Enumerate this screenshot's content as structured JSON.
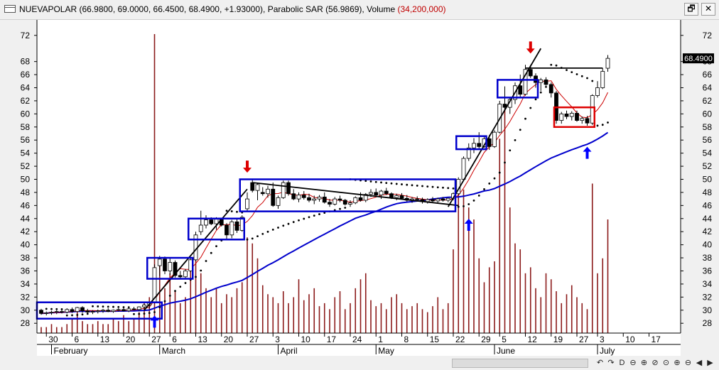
{
  "window": {
    "title_main": "NUEVAPOLAR (66.9800, 69.0000, 66.4500, 68.4900, +1.93000), Parabolic SAR (56.9869), Volume ",
    "title_volume": "(34,200,000)",
    "restore_label": "🗗",
    "close_label": "✕"
  },
  "toolbar": {
    "buttons": [
      "↶",
      "↷",
      "D",
      "⊖",
      "⊕",
      "⊘",
      "⊙",
      "⊕",
      "⊖",
      "◀",
      "▶"
    ]
  },
  "colors": {
    "bg": "#ffffff",
    "volume": "#8b1a1a",
    "ma_long": "#0000cc",
    "ma_short": "#cc0000",
    "sar": "#000000",
    "box": "#0000cc",
    "box_red": "#dd0000",
    "arrow_up": "#0000ff",
    "arrow_down": "#dd0000",
    "trendline": "#000000",
    "price_tag_bg": "#000000",
    "price_tag_fg": "#ffffff"
  },
  "chart_data": {
    "type": "candlestick",
    "y_ticks": [
      28,
      30,
      32,
      34,
      36,
      38,
      40,
      42,
      44,
      46,
      48,
      50,
      52,
      54,
      56,
      58,
      60,
      62,
      64,
      66,
      68,
      72
    ],
    "y_range": [
      26.5,
      73.5
    ],
    "last_price_tag": "68.4900",
    "x_day_ticks": [
      {
        "i": 1,
        "t": "30"
      },
      {
        "i": 6,
        "t": "6"
      },
      {
        "i": 11,
        "t": "13"
      },
      {
        "i": 16,
        "t": "20"
      },
      {
        "i": 21,
        "t": "27"
      },
      {
        "i": 25,
        "t": "6"
      },
      {
        "i": 30,
        "t": "13"
      },
      {
        "i": 35,
        "t": "20"
      },
      {
        "i": 40,
        "t": "27"
      },
      {
        "i": 45,
        "t": "3"
      },
      {
        "i": 50,
        "t": "10"
      },
      {
        "i": 55,
        "t": "17"
      },
      {
        "i": 60,
        "t": "24"
      },
      {
        "i": 65,
        "t": "1"
      },
      {
        "i": 70,
        "t": "8"
      },
      {
        "i": 75,
        "t": "15"
      },
      {
        "i": 80,
        "t": "22"
      },
      {
        "i": 85,
        "t": "29"
      },
      {
        "i": 89,
        "t": "5"
      },
      {
        "i": 94,
        "t": "12"
      },
      {
        "i": 99,
        "t": "19"
      },
      {
        "i": 104,
        "t": "27"
      },
      {
        "i": 108,
        "t": "3"
      },
      {
        "i": 113,
        "t": "10"
      },
      {
        "i": 118,
        "t": "17"
      }
    ],
    "x_month_ticks": [
      {
        "i": 2,
        "t": "February"
      },
      {
        "i": 23,
        "t": "March"
      },
      {
        "i": 46,
        "t": "April"
      },
      {
        "i": 65,
        "t": "May"
      },
      {
        "i": 88,
        "t": "June"
      },
      {
        "i": 108,
        "t": "July"
      }
    ],
    "candles": [
      [
        0,
        30.0,
        30.2,
        29.3,
        29.5
      ],
      [
        1,
        29.5,
        29.8,
        29.2,
        29.6
      ],
      [
        2,
        29.6,
        29.9,
        29.3,
        29.7
      ],
      [
        3,
        29.7,
        30.0,
        29.4,
        29.8
      ],
      [
        4,
        29.8,
        30.1,
        29.5,
        29.7
      ],
      [
        5,
        29.7,
        30.3,
        29.5,
        30.1
      ],
      [
        6,
        30.1,
        30.4,
        29.6,
        29.8
      ],
      [
        7,
        29.8,
        30.5,
        29.7,
        30.4
      ],
      [
        8,
        30.4,
        30.6,
        29.6,
        29.9
      ],
      [
        9,
        29.9,
        30.2,
        29.5,
        29.7
      ],
      [
        10,
        29.7,
        30.0,
        29.4,
        29.8
      ],
      [
        11,
        29.8,
        30.1,
        29.5,
        29.9
      ],
      [
        12,
        29.9,
        30.2,
        29.6,
        30.0
      ],
      [
        13,
        30.0,
        30.3,
        29.7,
        29.8
      ],
      [
        14,
        29.8,
        30.1,
        29.6,
        30.0
      ],
      [
        15,
        30.0,
        30.3,
        29.8,
        30.1
      ],
      [
        16,
        30.1,
        30.4,
        29.8,
        29.9
      ],
      [
        17,
        29.9,
        30.3,
        29.7,
        30.2
      ],
      [
        18,
        30.2,
        30.5,
        30.0,
        30.1
      ],
      [
        19,
        30.1,
        30.6,
        29.9,
        30.5
      ],
      [
        20,
        30.5,
        31.0,
        30.2,
        30.8
      ],
      [
        21,
        30.8,
        31.3,
        30.3,
        31.2
      ],
      [
        22,
        31.2,
        37.0,
        31.0,
        36.5
      ],
      [
        23,
        36.8,
        38.3,
        35.2,
        37.8
      ],
      [
        24,
        37.8,
        38.2,
        35.5,
        36.0
      ],
      [
        25,
        36.0,
        37.9,
        35.4,
        37.3
      ],
      [
        26,
        37.3,
        37.6,
        35.0,
        35.3
      ],
      [
        27,
        35.3,
        36.0,
        34.7,
        35.1
      ],
      [
        28,
        35.1,
        36.3,
        34.9,
        36.0
      ],
      [
        29,
        36.0,
        37.9,
        35.8,
        37.7
      ],
      [
        30,
        37.7,
        42.0,
        37.5,
        41.5
      ],
      [
        31,
        42.0,
        45.2,
        41.5,
        43.0
      ],
      [
        32,
        43.0,
        44.5,
        42.5,
        43.8
      ],
      [
        33,
        43.8,
        44.2,
        43.0,
        43.2
      ],
      [
        34,
        43.2,
        44.2,
        42.3,
        43.9
      ],
      [
        35,
        43.9,
        44.0,
        42.8,
        43.0
      ],
      [
        36,
        43.0,
        43.3,
        40.8,
        41.5
      ],
      [
        37,
        41.5,
        43.8,
        41.0,
        43.5
      ],
      [
        38,
        43.5,
        44.0,
        41.8,
        42.2
      ],
      [
        39,
        42.2,
        44.5,
        42.0,
        44.2
      ],
      [
        40,
        45.5,
        48.0,
        45.2,
        47.0
      ],
      [
        41,
        49.5,
        50.0,
        48.0,
        48.3
      ],
      [
        42,
        48.3,
        49.5,
        46.8,
        49.2
      ],
      [
        43,
        48.0,
        48.8,
        47.5,
        47.8
      ],
      [
        44,
        47.8,
        49.0,
        47.2,
        48.5
      ],
      [
        45,
        48.5,
        49.5,
        45.8,
        46.0
      ],
      [
        46,
        46.0,
        47.5,
        45.5,
        47.2
      ],
      [
        47,
        47.2,
        49.8,
        47.0,
        49.5
      ],
      [
        48,
        49.5,
        49.8,
        47.5,
        47.8
      ],
      [
        49,
        47.8,
        48.5,
        46.8,
        47.0
      ],
      [
        50,
        47.0,
        48.0,
        46.5,
        47.6
      ],
      [
        51,
        47.6,
        48.2,
        46.9,
        47.2
      ],
      [
        52,
        47.2,
        47.8,
        46.5,
        46.8
      ],
      [
        53,
        46.8,
        47.5,
        46.2,
        47.0
      ],
      [
        54,
        47.0,
        47.6,
        46.6,
        47.3
      ],
      [
        55,
        47.3,
        48.0,
        46.3,
        46.5
      ],
      [
        56,
        46.5,
        47.0,
        45.8,
        46.2
      ],
      [
        57,
        46.2,
        47.3,
        46.0,
        47.0
      ],
      [
        58,
        47.0,
        47.5,
        46.5,
        46.8
      ],
      [
        59,
        46.8,
        47.0,
        46.0,
        46.2
      ],
      [
        60,
        46.2,
        46.8,
        45.8,
        46.4
      ],
      [
        61,
        46.4,
        47.4,
        46.2,
        47.2
      ],
      [
        62,
        47.2,
        48.0,
        46.6,
        46.8
      ],
      [
        63,
        46.8,
        47.9,
        46.5,
        47.7
      ],
      [
        64,
        47.7,
        48.5,
        47.3,
        48.0
      ],
      [
        65,
        48.0,
        48.6,
        47.5,
        47.6
      ],
      [
        66,
        47.6,
        48.4,
        47.0,
        48.2
      ],
      [
        67,
        48.2,
        48.7,
        47.6,
        47.8
      ],
      [
        68,
        47.8,
        48.0,
        47.0,
        47.2
      ],
      [
        69,
        47.2,
        47.8,
        46.8,
        47.5
      ],
      [
        70,
        47.5,
        47.9,
        46.9,
        47.1
      ],
      [
        71,
        47.1,
        47.6,
        46.6,
        46.8
      ],
      [
        72,
        46.8,
        47.3,
        46.4,
        47.0
      ],
      [
        73,
        47.0,
        47.4,
        46.6,
        46.9
      ],
      [
        74,
        46.9,
        47.2,
        46.3,
        46.6
      ],
      [
        75,
        46.6,
        47.1,
        46.3,
        46.9
      ],
      [
        76,
        46.9,
        47.3,
        46.5,
        46.7
      ],
      [
        77,
        46.7,
        47.2,
        46.4,
        47.0
      ],
      [
        78,
        47.0,
        47.3,
        46.6,
        46.8
      ],
      [
        79,
        46.8,
        47.2,
        46.5,
        47.1
      ],
      [
        80,
        47.1,
        48.0,
        46.8,
        47.8
      ],
      [
        81,
        47.8,
        50.3,
        47.6,
        50.0
      ],
      [
        82,
        50.0,
        53.5,
        49.8,
        53.2
      ],
      [
        83,
        53.2,
        55.5,
        52.8,
        54.8
      ],
      [
        84,
        54.8,
        56.3,
        54.0,
        55.5
      ],
      [
        85,
        55.5,
        57.2,
        54.5,
        55.0
      ],
      [
        86,
        55.0,
        56.7,
        54.8,
        56.2
      ],
      [
        87,
        56.2,
        56.8,
        54.5,
        55.0
      ],
      [
        88,
        55.0,
        57.5,
        54.8,
        57.2
      ],
      [
        89,
        57.2,
        62.0,
        57.0,
        61.5
      ],
      [
        90,
        61.5,
        64.2,
        60.5,
        61.0
      ],
      [
        91,
        61.0,
        62.5,
        60.0,
        62.2
      ],
      [
        92,
        62.2,
        64.8,
        61.5,
        64.3
      ],
      [
        93,
        64.3,
        66.0,
        62.5,
        63.0
      ],
      [
        94,
        63.0,
        67.5,
        62.8,
        66.8
      ],
      [
        95,
        66.8,
        67.5,
        65.5,
        65.8
      ],
      [
        96,
        65.8,
        66.2,
        64.0,
        64.8
      ],
      [
        97,
        64.8,
        65.5,
        63.5,
        65.2
      ],
      [
        98,
        65.2,
        65.6,
        64.3,
        64.5
      ],
      [
        99,
        64.5,
        64.8,
        62.5,
        63.2
      ],
      [
        100,
        63.2,
        63.5,
        58.5,
        59.0
      ],
      [
        101,
        59.0,
        60.3,
        58.5,
        60.0
      ],
      [
        102,
        60.0,
        60.5,
        59.2,
        59.6
      ],
      [
        103,
        59.6,
        60.4,
        59.0,
        60.1
      ],
      [
        104,
        60.1,
        60.5,
        58.8,
        59.0
      ],
      [
        105,
        59.0,
        59.6,
        58.5,
        59.3
      ],
      [
        106,
        59.3,
        59.7,
        58.2,
        58.6
      ],
      [
        107,
        58.6,
        63.0,
        58.3,
        62.8
      ],
      [
        108,
        62.8,
        65.0,
        62.5,
        64.0
      ],
      [
        109,
        64.0,
        67.0,
        63.8,
        66.5
      ],
      [
        110,
        66.98,
        69.0,
        66.45,
        68.49
      ]
    ],
    "volume_scale_note": "volume shown as relative bar heights",
    "volume": [
      0.02,
      0.02,
      0.03,
      0.02,
      0.02,
      0.03,
      0.05,
      0.08,
      0.04,
      0.03,
      0.03,
      0.04,
      0.03,
      0.03,
      0.05,
      0.04,
      0.06,
      0.04,
      0.05,
      0.07,
      0.1,
      0.12,
      1.0,
      0.25,
      0.15,
      0.2,
      0.14,
      0.1,
      0.12,
      0.22,
      0.28,
      0.2,
      0.15,
      0.12,
      0.15,
      0.1,
      0.13,
      0.12,
      0.15,
      0.17,
      0.32,
      0.3,
      0.25,
      0.16,
      0.13,
      0.12,
      0.1,
      0.14,
      0.1,
      0.12,
      0.18,
      0.11,
      0.13,
      0.15,
      0.09,
      0.1,
      0.08,
      0.12,
      0.14,
      0.08,
      0.1,
      0.15,
      0.18,
      0.2,
      0.11,
      0.09,
      0.1,
      0.08,
      0.12,
      0.13,
      0.1,
      0.08,
      0.09,
      0.1,
      0.08,
      0.07,
      0.09,
      0.12,
      0.08,
      0.1,
      0.28,
      0.5,
      0.48,
      0.42,
      0.38,
      0.25,
      0.17,
      0.22,
      0.24,
      0.65,
      0.75,
      0.42,
      0.3,
      0.28,
      0.2,
      0.22,
      0.15,
      0.12,
      0.2,
      0.18,
      0.14,
      0.1,
      0.13,
      0.16,
      0.12,
      0.1,
      0.08,
      0.5,
      0.2,
      0.25,
      0.38
    ],
    "annotation_boxes": [
      {
        "i0": -1,
        "i1": 23,
        "y0": 28.7,
        "y1": 31.2,
        "color": "box"
      },
      {
        "i0": 21,
        "i1": 29,
        "y0": 34.8,
        "y1": 38.0,
        "color": "box"
      },
      {
        "i0": 29,
        "i1": 39,
        "y0": 40.8,
        "y1": 44.0,
        "color": "box"
      },
      {
        "i0": 39,
        "i1": 80,
        "y0": 45.1,
        "y1": 50.0,
        "color": "box"
      },
      {
        "i0": 81,
        "i1": 86,
        "y0": 54.6,
        "y1": 56.6,
        "color": "box"
      },
      {
        "i0": 89,
        "i1": 96,
        "y0": 62.5,
        "y1": 65.2,
        "color": "box"
      },
      {
        "i0": 100,
        "i1": 107,
        "y0": 58.0,
        "y1": 61.0,
        "color": "box_red"
      }
    ],
    "trendlines": [
      {
        "i0": 20,
        "v0": 30.0,
        "i1": 40,
        "v1": 48.5
      },
      {
        "i0": 41,
        "v0": 49.5,
        "i1": 81,
        "v1": 46.0
      },
      {
        "i0": 79,
        "v0": 45.8,
        "i1": 97,
        "v1": 70.0
      },
      {
        "i0": 94,
        "v0": 67.0,
        "i1": 109,
        "v1": 67.0
      }
    ],
    "arrows": [
      {
        "i": 22,
        "v": 28.2,
        "dir": "up"
      },
      {
        "i": 40,
        "v": 52.0,
        "dir": "down"
      },
      {
        "i": 83,
        "v": 43.0,
        "dir": "up"
      },
      {
        "i": 95,
        "v": 70.2,
        "dir": "down"
      },
      {
        "i": 106,
        "v": 54.0,
        "dir": "up"
      }
    ]
  }
}
